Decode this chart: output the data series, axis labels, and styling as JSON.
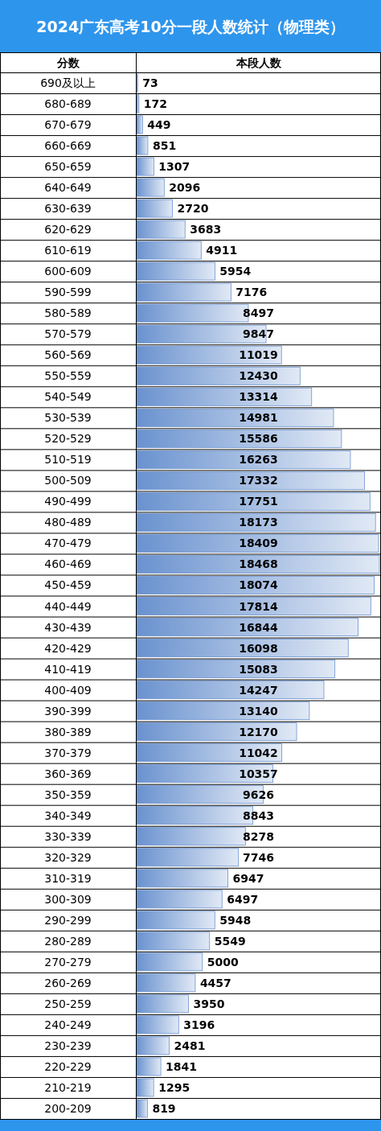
{
  "chart_data": {
    "type": "bar",
    "orientation": "horizontal",
    "title": "2024广东高考10分一段人数统计（物理类）",
    "ylabel": "分数",
    "xlabel": "本段人数",
    "categories": [
      "690及以上",
      "680-689",
      "670-679",
      "660-669",
      "650-659",
      "640-649",
      "630-639",
      "620-629",
      "610-619",
      "600-609",
      "590-599",
      "580-589",
      "570-579",
      "560-569",
      "550-559",
      "540-549",
      "530-539",
      "520-529",
      "510-519",
      "500-509",
      "490-499",
      "480-489",
      "470-479",
      "460-469",
      "450-459",
      "440-449",
      "430-439",
      "420-429",
      "410-419",
      "400-409",
      "390-399",
      "380-389",
      "370-379",
      "360-369",
      "350-359",
      "340-349",
      "330-339",
      "320-329",
      "310-319",
      "300-309",
      "290-299",
      "280-289",
      "270-279",
      "260-269",
      "250-259",
      "240-249",
      "230-239",
      "220-229",
      "210-219",
      "200-209"
    ],
    "values": [
      73,
      172,
      449,
      851,
      1307,
      2096,
      2720,
      3683,
      4911,
      5954,
      7176,
      8497,
      9847,
      11019,
      12430,
      13314,
      14981,
      15586,
      16263,
      17332,
      17751,
      18173,
      18409,
      18468,
      18074,
      17814,
      16844,
      16098,
      15083,
      14247,
      13140,
      12170,
      11042,
      10357,
      9626,
      8843,
      8278,
      7746,
      6947,
      6497,
      5948,
      5549,
      5000,
      4457,
      3950,
      3196,
      2481,
      1841,
      1295,
      819
    ],
    "color": "#6a92cf",
    "data_labels": true
  }
}
